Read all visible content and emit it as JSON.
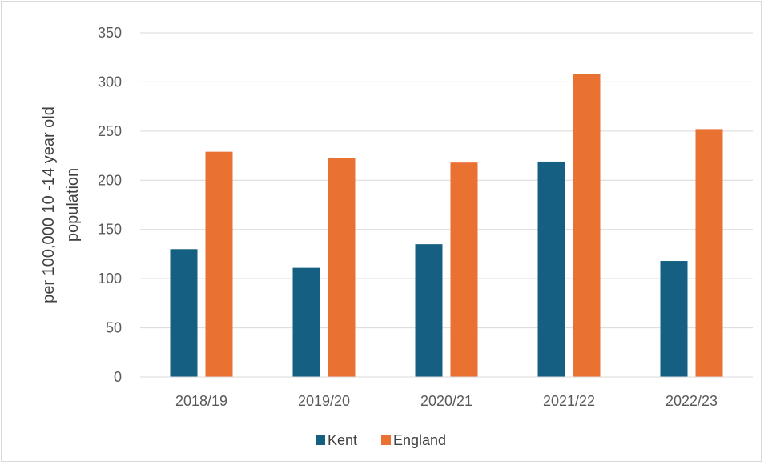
{
  "chart_data": {
    "type": "bar",
    "title": "",
    "xlabel": "",
    "ylabel_lines": [
      "per 100,000 10 -14 year old",
      "population"
    ],
    "categories": [
      "2018/19",
      "2019/20",
      "2020/21",
      "2021/22",
      "2022/23"
    ],
    "ylim": [
      0,
      350
    ],
    "yticks": [
      0,
      50,
      100,
      150,
      200,
      250,
      300,
      350
    ],
    "grid": true,
    "legend_position": "bottom",
    "series": [
      {
        "name": "Kent",
        "color": "#156082",
        "values": [
          130,
          111,
          135,
          219,
          118
        ]
      },
      {
        "name": "England",
        "color": "#e97132",
        "values": [
          229,
          223,
          218,
          308,
          252
        ]
      }
    ]
  }
}
